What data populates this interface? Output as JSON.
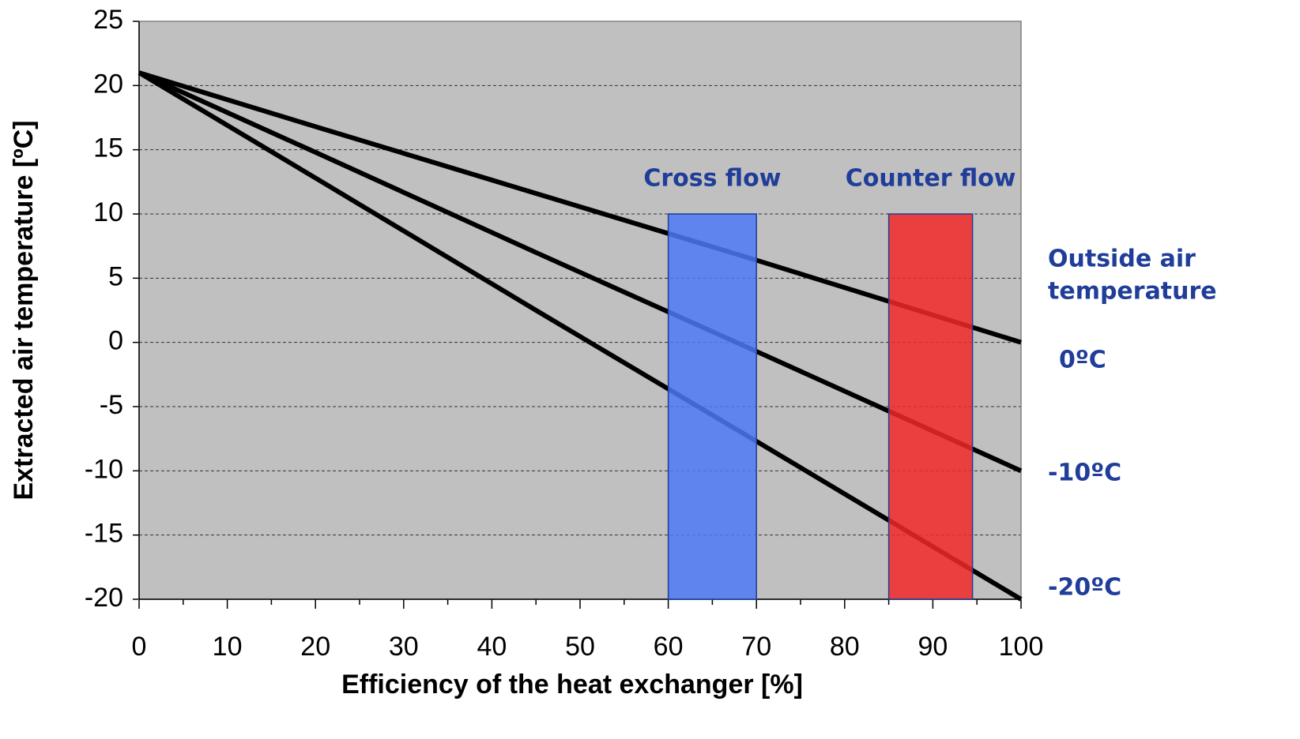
{
  "chart_data": {
    "type": "line",
    "xlabel": "Efficiency of the heat exchanger [%]",
    "ylabel": "Extracted air temperature [ºC]",
    "legend_title": [
      "Outside air",
      "temperature"
    ],
    "x": [
      0,
      20,
      45,
      70,
      100
    ],
    "series": [
      {
        "name": "0ºC",
        "color": "#000000",
        "values": [
          21,
          16.8,
          11.6,
          6.4,
          0
        ]
      },
      {
        "name": "-10ºC",
        "color": "#000000",
        "values": [
          21,
          14.8,
          7,
          -0.7,
          -10
        ]
      },
      {
        "name": "-20ºC",
        "color": "#000000",
        "values": [
          21,
          12.8,
          2.5,
          -7.7,
          -20
        ]
      }
    ],
    "bands": [
      {
        "label": "Cross flow",
        "x": [
          60,
          70
        ],
        "y": [
          -20,
          10
        ],
        "color": "#4f79f5"
      },
      {
        "label": "Counter flow",
        "x": [
          85,
          94.5
        ],
        "y": [
          -20,
          10
        ],
        "color": "#f02828"
      }
    ],
    "xlim": [
      0,
      100
    ],
    "xticks": [
      0,
      10,
      20,
      30,
      40,
      50,
      60,
      70,
      80,
      90,
      100
    ],
    "ylim": [
      -20,
      25
    ],
    "yticks": [
      -20,
      -15,
      -10,
      -5,
      0,
      5,
      10,
      15,
      20,
      25
    ],
    "grid": true,
    "plot_color": "#c0c0c0"
  }
}
